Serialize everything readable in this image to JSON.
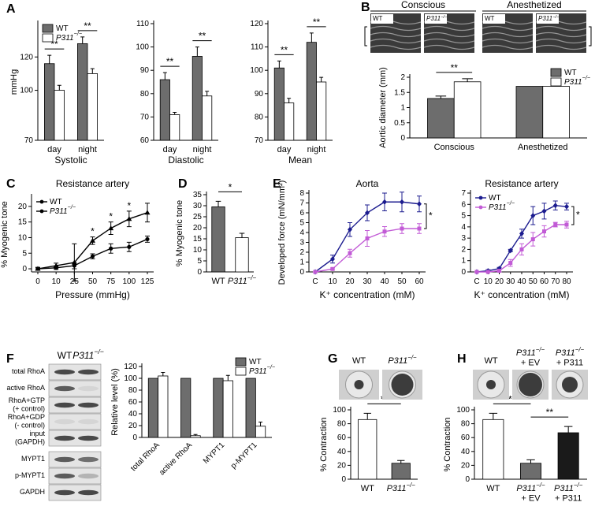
{
  "chart_data": [
    {
      "type": "bar",
      "panel": "A",
      "title": "Systolic",
      "y_label": "mmHg",
      "categories": [
        "day",
        "night"
      ],
      "series": [
        {
          "name": "WT",
          "color": "#6d6d6d",
          "values": [
            116,
            128
          ],
          "errors": [
            5,
            4
          ]
        },
        {
          "name": "P311−/−",
          "color": "#ffffff",
          "values": [
            100,
            110
          ],
          "errors": [
            3,
            3
          ]
        }
      ],
      "ylim": [
        70,
        140
      ],
      "yticks": [
        70,
        100,
        120
      ],
      "significance": [
        "**",
        "**"
      ],
      "legend": "top-left"
    },
    {
      "type": "bar",
      "title": "Diastolic",
      "categories": [
        "day",
        "night"
      ],
      "series": [
        {
          "color": "#6d6d6d",
          "values": [
            86,
            96
          ],
          "errors": [
            3,
            4
          ]
        },
        {
          "color": "#ffffff",
          "values": [
            71,
            79
          ],
          "errors": [
            1,
            2
          ]
        }
      ],
      "ylim": [
        60,
        110
      ],
      "yticks": [
        60,
        70,
        80,
        90,
        100,
        110
      ],
      "significance": [
        "**",
        "**"
      ]
    },
    {
      "type": "bar",
      "title": "Mean",
      "categories": [
        "day",
        "night"
      ],
      "series": [
        {
          "color": "#6d6d6d",
          "values": [
            101,
            112
          ],
          "errors": [
            3,
            4
          ]
        },
        {
          "color": "#ffffff",
          "values": [
            86,
            95
          ],
          "errors": [
            2,
            2
          ]
        }
      ],
      "ylim": [
        70,
        120
      ],
      "yticks": [
        70,
        80,
        90,
        100,
        110,
        120
      ],
      "significance": [
        "**",
        "**"
      ]
    },
    {
      "type": "bar",
      "panel": "B",
      "image_headers": [
        "Conscious",
        "Anesthetized"
      ],
      "image_tags": [
        "WT",
        "P311−/−",
        "WT",
        "P311−/−"
      ],
      "y_label": "Aortic diameter (mm)",
      "categories": [
        "Conscious",
        "Anesthetized"
      ],
      "series": [
        {
          "name": "WT",
          "color": "#6d6d6d",
          "values": [
            1.3,
            1.7
          ],
          "errors": [
            0.08,
            null
          ]
        },
        {
          "name": "P311−/−",
          "color": "#ffffff",
          "values": [
            1.85,
            1.7
          ],
          "errors": [
            0.1,
            null
          ]
        }
      ],
      "ylim": [
        0,
        2
      ],
      "yticks": [
        0,
        0.5,
        1,
        1.5,
        2
      ],
      "significance": [
        "**",
        null
      ],
      "legend": "top-right"
    },
    {
      "type": "line",
      "panel": "C",
      "title": "Resistance artery",
      "x_label": "Pressure (mmHg)",
      "y_label": "% Myogenic tone",
      "categories": [
        "0",
        "10",
        "25",
        "50",
        "75",
        "100",
        "125"
      ],
      "series": [
        {
          "name": "WT",
          "color": "#000000",
          "marker": "triangle",
          "values": [
            0,
            1,
            2,
            9,
            13,
            16,
            18
          ],
          "errors": [
            0.5,
            0.8,
            6,
            1.2,
            2,
            2.5,
            3
          ]
        },
        {
          "name": "P311−/−",
          "color": "#000000",
          "marker": "circle",
          "values": [
            0,
            0.3,
            1,
            4,
            6.5,
            7,
            9.5
          ],
          "errors": [
            0.3,
            0.5,
            1,
            0.8,
            1.5,
            1.5,
            1
          ]
        }
      ],
      "ylim": [
        -1,
        23
      ],
      "yticks": [
        0,
        5,
        10,
        15,
        20
      ],
      "significance": [
        null,
        null,
        null,
        "*",
        "*",
        "*",
        null
      ],
      "legend": "top-left"
    },
    {
      "type": "bar",
      "panel": "D",
      "y_label": "% Myogenic tone",
      "categories": [
        "WT",
        "P311−/−"
      ],
      "values": [
        29.5,
        15.5
      ],
      "errors": [
        2.5,
        2
      ],
      "colors": [
        "#6d6d6d",
        "#ffffff"
      ],
      "ylim": [
        0,
        35
      ],
      "yticks": [
        0,
        5,
        10,
        15,
        20,
        25,
        30,
        35
      ],
      "significance": "*"
    },
    {
      "type": "line",
      "panel": "E",
      "title": "Aorta",
      "y_label": "Developed force (mN/mm²)",
      "x_label": "K⁺ concentration (mM)",
      "categories": [
        "C",
        "10",
        "20",
        "30",
        "40",
        "50",
        "60"
      ],
      "series": [
        {
          "color": "#1c1c8f",
          "marker": "diamond",
          "values": [
            0,
            1.3,
            4.3,
            6,
            7.1,
            7.1,
            6.9
          ],
          "errors": [
            0,
            0.4,
            0.7,
            0.8,
            0.9,
            1,
            0.8
          ]
        },
        {
          "color": "#c25bd6",
          "marker": "square",
          "values": [
            0,
            0.3,
            1.9,
            3.4,
            4.1,
            4.4,
            4.4
          ],
          "errors": [
            0,
            0.1,
            0.4,
            0.8,
            0.5,
            0.5,
            0.5
          ]
        }
      ],
      "ylim": [
        0,
        8
      ],
      "yticks": [
        0,
        1,
        2,
        3,
        4,
        5,
        6,
        7,
        8
      ],
      "significance": "*"
    },
    {
      "type": "line",
      "title": "Resistance artery",
      "x_label": "K⁺ concentration (mM)",
      "categories": [
        "C",
        "10",
        "20",
        "30",
        "40",
        "50",
        "60",
        "70",
        "80"
      ],
      "series": [
        {
          "name": "WT",
          "color": "#1c1c8f",
          "marker": "diamond",
          "values": [
            0,
            0.1,
            0.3,
            1.9,
            3.4,
            5,
            5.4,
            5.9,
            5.8
          ],
          "errors": [
            0,
            0.1,
            0.1,
            0.1,
            0.4,
            0.8,
            0.7,
            0.4,
            0.3
          ]
        },
        {
          "name": "P311−/−",
          "color": "#c25bd6",
          "marker": "square",
          "values": [
            0,
            0,
            0.1,
            0.8,
            2,
            2.9,
            3.6,
            4.2,
            4.2
          ],
          "errors": [
            0,
            0,
            0.1,
            0.3,
            0.5,
            0.6,
            0.5,
            0.2,
            0.3
          ]
        }
      ],
      "ylim": [
        0,
        7
      ],
      "yticks": [
        0,
        1,
        2,
        3,
        4,
        5,
        6,
        7
      ],
      "significance": "*",
      "legend": "top-left"
    },
    {
      "type": "bar",
      "panel": "F",
      "blot_columns": [
        "WT",
        "P311−/−"
      ],
      "blot_rows": [
        "total RhoA",
        "active RhoA",
        "RhoA+GTP\n(+ control)",
        "RhoA+GDP\n(- control)",
        "input\n(GAPDH)",
        "MYPT1",
        "p-MYPT1",
        "GAPDH"
      ],
      "y_label": "Relative level (%)",
      "categories": [
        "total RhoA",
        "active RhoA",
        "MYPT1",
        "p-MYPT1"
      ],
      "series": [
        {
          "name": "WT",
          "color": "#6d6d6d",
          "values": [
            100,
            100,
            100,
            100
          ]
        },
        {
          "name": "P311−/−",
          "color": "#ffffff",
          "values": [
            104,
            3,
            96,
            19
          ],
          "errors": [
            6,
            2,
            9,
            7
          ]
        }
      ],
      "ylim": [
        0,
        120
      ],
      "yticks": [
        0,
        20,
        40,
        60,
        80,
        100,
        120
      ],
      "legend": "top-right"
    },
    {
      "type": "bar",
      "panel": "G",
      "image_labels": [
        "WT",
        "P311−/−"
      ],
      "y_label": "% Contraction",
      "categories": [
        "WT",
        "P311−/−"
      ],
      "values": [
        86,
        23
      ],
      "errors": [
        9,
        4
      ],
      "colors": [
        "#ffffff",
        "#6d6d6d"
      ],
      "ylim": [
        0,
        100
      ],
      "yticks": [
        0,
        20,
        40,
        60,
        80,
        100
      ],
      "significance": "**"
    },
    {
      "type": "bar",
      "panel": "H",
      "image_labels": [
        "WT",
        "P311−/−\n+ EV",
        "P311−/−\n+ P311"
      ],
      "y_label": "% Contraction",
      "categories": [
        "WT",
        "P311−/−\n+ EV",
        "P311−/−\n+ P311"
      ],
      "values": [
        86,
        23,
        67
      ],
      "errors": [
        9,
        5,
        9
      ],
      "colors": [
        "#ffffff",
        "#6d6d6d",
        "#1a1a1a"
      ],
      "ylim": [
        0,
        100
      ],
      "yticks": [
        0,
        20,
        40,
        60,
        80,
        100
      ],
      "significance": [
        "**",
        "**"
      ]
    }
  ]
}
